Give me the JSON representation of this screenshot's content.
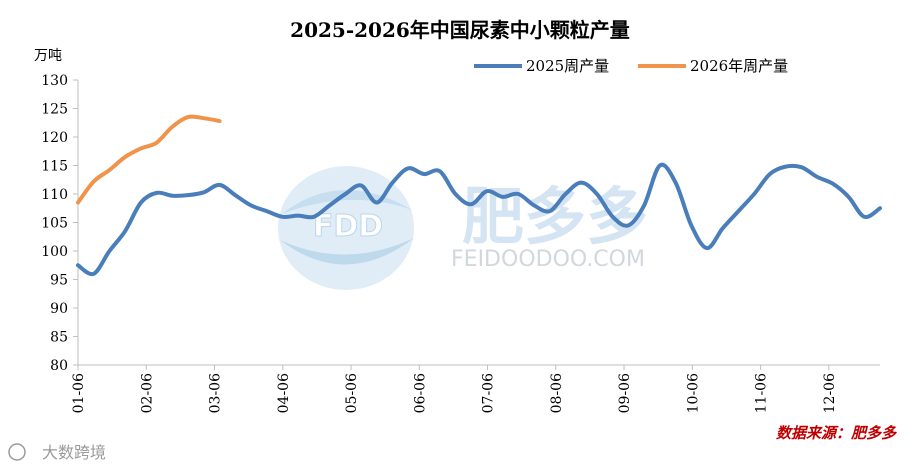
{
  "chart_data": {
    "type": "line",
    "title": "2025-2026年中国尿素中小颗粒产量",
    "ylabel": "万吨",
    "xlabel": "",
    "ylim": [
      80,
      130
    ],
    "yticks": [
      80,
      85,
      90,
      95,
      100,
      105,
      110,
      115,
      120,
      125,
      130
    ],
    "categories": [
      "01-06",
      "02-06",
      "03-06",
      "04-06",
      "05-06",
      "06-06",
      "07-06",
      "08-06",
      "09-06",
      "10-06",
      "11-06",
      "12-06"
    ],
    "x_unit": "week",
    "grid": false,
    "legend_position": "top-right",
    "series": [
      {
        "name": "2025周产量",
        "color": "#4a7ebb",
        "x": [
          1,
          2,
          3,
          4,
          5,
          6,
          7,
          8,
          9,
          10,
          11,
          12,
          13,
          14,
          15,
          16,
          17,
          18,
          19,
          20,
          21,
          22,
          23,
          24,
          25,
          26,
          27,
          28,
          29,
          30,
          31,
          32,
          33,
          34,
          35,
          36,
          37,
          38,
          39,
          40,
          41,
          42,
          43,
          44,
          45,
          46,
          47,
          48,
          49,
          50,
          51,
          52
        ],
        "values": [
          97.5,
          96,
          100,
          103.5,
          108.5,
          110.2,
          109.7,
          109.8,
          110.3,
          111.6,
          109.8,
          108,
          107,
          106,
          106.2,
          106,
          108,
          110,
          111.5,
          108.5,
          112,
          114.5,
          113.5,
          114,
          110,
          108.2,
          110.5,
          109.5,
          110,
          108,
          107,
          110,
          112,
          110,
          106,
          104.5,
          108,
          115,
          112,
          104.5,
          100.5,
          104,
          107,
          110,
          113.5,
          114.8,
          114.7,
          113,
          111.8,
          109.5,
          106,
          107.5
        ]
      },
      {
        "name": "2026年周产量",
        "color": "#f0944b",
        "x": [
          1,
          2,
          3,
          4,
          5,
          6,
          7,
          8,
          9,
          10
        ],
        "values": [
          108.5,
          112.2,
          114.2,
          116.5,
          118,
          119,
          121.8,
          123.5,
          123.3,
          122.8
        ]
      }
    ]
  },
  "watermark": {
    "logo_text": "FDD",
    "brand_name": "肥多多",
    "domain": "FEIDOODOO.COM"
  },
  "source": "数据来源：肥多多",
  "corner_mark": "大数跨境"
}
